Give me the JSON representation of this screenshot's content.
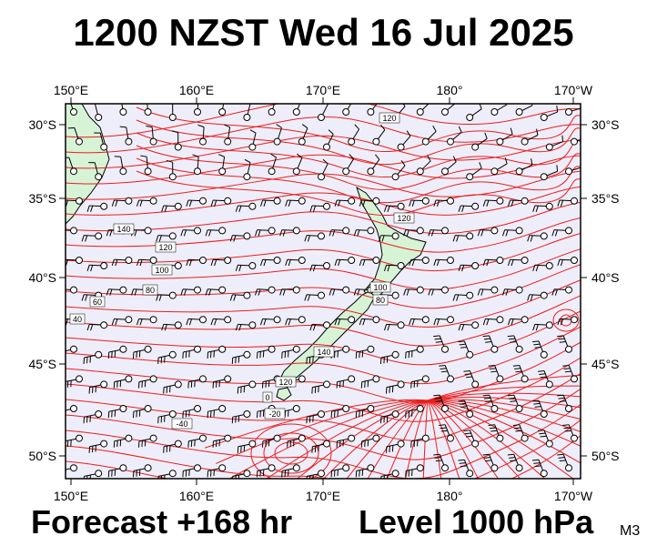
{
  "title": "1200 NZST Wed 16 Jul 2025",
  "footer": {
    "forecast": "Forecast +168 hr",
    "level": "Level 1000 hPa",
    "model": "M3"
  },
  "map": {
    "lon_labels": [
      "150°E",
      "160°E",
      "170°E",
      "180°",
      "170°W"
    ],
    "lat_labels": [
      "30°S",
      "35°S",
      "40°S",
      "45°S",
      "50°S"
    ],
    "contour_labels": [
      "140",
      "120",
      "100",
      "80",
      "60",
      "40",
      "120",
      "100",
      "80",
      "140",
      "120",
      "0",
      "-20",
      "-40",
      "120"
    ],
    "colors": {
      "background": "#eeeefa",
      "land": "#d6f3d6",
      "contour": "#ee1c1c",
      "barb": "#000000",
      "border": "#000000"
    },
    "barb_rows": 13,
    "barb_cols": 21
  }
}
